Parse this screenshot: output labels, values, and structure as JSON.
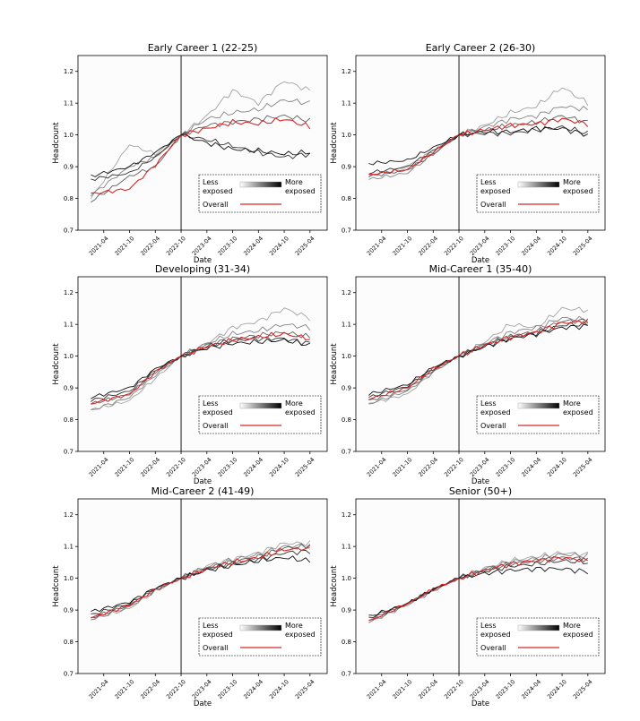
{
  "figure": {
    "title": ""
  },
  "chart_data": [
    {
      "type": "line",
      "title": "Early Career 1 (22-25)",
      "xlabel": "Date",
      "ylabel": "Headcount",
      "x_ticks": [
        "2021-04",
        "2021-10",
        "2022-04",
        "2022-10",
        "2023-04",
        "2023-10",
        "2024-04",
        "2024-10",
        "2025-04"
      ],
      "ylim": [
        0.7,
        1.25
      ],
      "y_ticks": [
        0.7,
        0.8,
        0.9,
        1.0,
        1.1,
        1.2
      ],
      "vertical_line_at": "2022-10",
      "legend": {
        "less_label": "Less\nexposed",
        "more_label": "More\nexposed",
        "overall_label": "Overall",
        "placement": "lower-right"
      },
      "series": [
        {
          "name": "Overall",
          "color": "#d62728",
          "anchors": [
            0.815,
            0.83,
            0.905,
            1.0,
            1.02,
            1.04,
            1.035,
            1.05,
            1.025
          ]
        },
        {
          "shade": 0.08,
          "anchors": [
            0.87,
            0.9,
            0.945,
            1.0,
            0.975,
            0.955,
            0.95,
            0.94,
            0.945
          ]
        },
        {
          "shade": 0.22,
          "anchors": [
            0.86,
            0.88,
            0.93,
            1.0,
            0.985,
            0.965,
            0.945,
            0.93,
            0.94
          ]
        },
        {
          "shade": 0.42,
          "anchors": [
            0.79,
            0.87,
            0.9,
            1.0,
            1.03,
            1.04,
            1.05,
            1.06,
            1.045
          ]
        },
        {
          "shade": 0.58,
          "anchors": [
            0.81,
            0.9,
            0.93,
            1.0,
            1.05,
            1.07,
            1.08,
            1.11,
            1.1
          ]
        },
        {
          "shade": 0.72,
          "anchors": [
            0.8,
            0.97,
            0.94,
            1.0,
            1.06,
            1.14,
            1.1,
            1.17,
            1.14
          ]
        }
      ]
    },
    {
      "type": "line",
      "title": "Early Career 2 (26-30)",
      "xlabel": "Date",
      "ylabel": "Headcount",
      "x_ticks": [
        "2021-04",
        "2021-10",
        "2022-04",
        "2022-10",
        "2023-04",
        "2023-10",
        "2024-04",
        "2024-10",
        "2025-04"
      ],
      "ylim": [
        0.7,
        1.25
      ],
      "y_ticks": [
        0.7,
        0.8,
        0.9,
        1.0,
        1.1,
        1.2
      ],
      "vertical_line_at": "2022-10",
      "legend": {
        "less_label": "Less\nexposed",
        "more_label": "More\nexposed",
        "overall_label": "Overall",
        "placement": "lower-right"
      },
      "series": [
        {
          "name": "Overall",
          "color": "#d62728",
          "anchors": [
            0.875,
            0.89,
            0.945,
            1.0,
            1.015,
            1.03,
            1.035,
            1.05,
            1.035
          ]
        },
        {
          "shade": 0.08,
          "anchors": [
            0.91,
            0.92,
            0.96,
            1.0,
            1.01,
            1.01,
            1.02,
            1.02,
            1.0
          ]
        },
        {
          "shade": 0.22,
          "anchors": [
            0.88,
            0.9,
            0.95,
            1.0,
            1.005,
            1.005,
            1.015,
            1.025,
            1.005
          ]
        },
        {
          "shade": 0.42,
          "anchors": [
            0.87,
            0.89,
            0.94,
            1.0,
            1.015,
            1.03,
            1.04,
            1.06,
            1.04
          ]
        },
        {
          "shade": 0.58,
          "anchors": [
            0.86,
            0.88,
            0.94,
            1.0,
            1.025,
            1.05,
            1.06,
            1.09,
            1.08
          ]
        },
        {
          "shade": 0.72,
          "anchors": [
            0.87,
            0.9,
            0.95,
            1.0,
            1.03,
            1.07,
            1.09,
            1.15,
            1.1
          ]
        }
      ]
    },
    {
      "type": "line",
      "title": "Developing (31-34)",
      "xlabel": "Date",
      "ylabel": "Headcount",
      "x_ticks": [
        "2021-04",
        "2021-10",
        "2022-04",
        "2022-10",
        "2023-04",
        "2023-10",
        "2024-04",
        "2024-10",
        "2025-04"
      ],
      "ylim": [
        0.7,
        1.25
      ],
      "y_ticks": [
        0.7,
        0.8,
        0.9,
        1.0,
        1.1,
        1.2
      ],
      "vertical_line_at": "2022-10",
      "legend": {
        "less_label": "Less\nexposed",
        "more_label": "More\nexposed",
        "overall_label": "Overall",
        "placement": "lower-right"
      },
      "series": [
        {
          "name": "Overall",
          "color": "#d62728",
          "anchors": [
            0.85,
            0.88,
            0.95,
            1.0,
            1.03,
            1.05,
            1.06,
            1.07,
            1.055
          ]
        },
        {
          "shade": 0.08,
          "anchors": [
            0.87,
            0.9,
            0.96,
            1.0,
            1.025,
            1.04,
            1.045,
            1.05,
            1.035
          ]
        },
        {
          "shade": 0.22,
          "anchors": [
            0.86,
            0.89,
            0.955,
            1.0,
            1.03,
            1.05,
            1.055,
            1.055,
            1.04
          ]
        },
        {
          "shade": 0.42,
          "anchors": [
            0.85,
            0.88,
            0.95,
            1.0,
            1.035,
            1.055,
            1.065,
            1.075,
            1.06
          ]
        },
        {
          "shade": 0.58,
          "anchors": [
            0.83,
            0.87,
            0.94,
            1.0,
            1.04,
            1.07,
            1.08,
            1.1,
            1.09
          ]
        },
        {
          "shade": 0.72,
          "anchors": [
            0.83,
            0.86,
            0.93,
            1.0,
            1.04,
            1.09,
            1.11,
            1.15,
            1.12
          ]
        }
      ]
    },
    {
      "type": "line",
      "title": "Mid-Career 1 (35-40)",
      "xlabel": "Date",
      "ylabel": "Headcount",
      "x_ticks": [
        "2021-04",
        "2021-10",
        "2022-04",
        "2022-10",
        "2023-04",
        "2023-10",
        "2024-04",
        "2024-10",
        "2025-04"
      ],
      "ylim": [
        0.7,
        1.25
      ],
      "y_ticks": [
        0.7,
        0.8,
        0.9,
        1.0,
        1.1,
        1.2
      ],
      "vertical_line_at": "2022-10",
      "legend": {
        "less_label": "Less\nexposed",
        "more_label": "More\nexposed",
        "overall_label": "Overall",
        "placement": "lower-right"
      },
      "series": [
        {
          "name": "Overall",
          "color": "#d62728",
          "anchors": [
            0.865,
            0.9,
            0.96,
            1.0,
            1.035,
            1.06,
            1.075,
            1.105,
            1.11
          ]
        },
        {
          "shade": 0.08,
          "anchors": [
            0.88,
            0.91,
            0.965,
            1.0,
            1.03,
            1.055,
            1.07,
            1.09,
            1.095
          ]
        },
        {
          "shade": 0.22,
          "anchors": [
            0.87,
            0.905,
            0.96,
            1.0,
            1.032,
            1.058,
            1.072,
            1.098,
            1.1
          ]
        },
        {
          "shade": 0.42,
          "anchors": [
            0.86,
            0.895,
            0.955,
            1.0,
            1.036,
            1.062,
            1.078,
            1.11,
            1.112
          ]
        },
        {
          "shade": 0.58,
          "anchors": [
            0.85,
            0.89,
            0.95,
            1.0,
            1.04,
            1.075,
            1.09,
            1.12,
            1.115
          ]
        },
        {
          "shade": 0.72,
          "anchors": [
            0.85,
            0.88,
            0.95,
            1.0,
            1.045,
            1.1,
            1.09,
            1.15,
            1.145
          ]
        }
      ]
    },
    {
      "type": "line",
      "title": "Mid-Career 2 (41-49)",
      "xlabel": "Date",
      "ylabel": "Headcount",
      "x_ticks": [
        "2021-04",
        "2021-10",
        "2022-04",
        "2022-10",
        "2023-04",
        "2023-10",
        "2024-04",
        "2024-10",
        "2025-04"
      ],
      "ylim": [
        0.7,
        1.25
      ],
      "y_ticks": [
        0.7,
        0.8,
        0.9,
        1.0,
        1.1,
        1.2
      ],
      "vertical_line_at": "2022-10",
      "legend": {
        "less_label": "Less\nexposed",
        "more_label": "More\nexposed",
        "overall_label": "Overall",
        "placement": "lower-right"
      },
      "series": [
        {
          "name": "Overall",
          "color": "#d62728",
          "anchors": [
            0.875,
            0.915,
            0.965,
            1.0,
            1.03,
            1.05,
            1.065,
            1.09,
            1.095
          ]
        },
        {
          "shade": 0.08,
          "anchors": [
            0.895,
            0.925,
            0.97,
            1.0,
            1.025,
            1.04,
            1.055,
            1.065,
            1.055
          ]
        },
        {
          "shade": 0.22,
          "anchors": [
            0.885,
            0.92,
            0.968,
            1.0,
            1.028,
            1.046,
            1.06,
            1.08,
            1.085
          ]
        },
        {
          "shade": 0.42,
          "anchors": [
            0.875,
            0.915,
            0.965,
            1.0,
            1.032,
            1.052,
            1.068,
            1.095,
            1.1
          ]
        },
        {
          "shade": 0.58,
          "anchors": [
            0.87,
            0.91,
            0.96,
            1.0,
            1.036,
            1.058,
            1.075,
            1.1,
            1.105
          ]
        },
        {
          "shade": 0.72,
          "anchors": [
            0.87,
            0.905,
            0.96,
            1.0,
            1.04,
            1.06,
            1.08,
            1.11,
            1.11
          ]
        }
      ]
    },
    {
      "type": "line",
      "title": "Senior (50+)",
      "xlabel": "Date",
      "ylabel": "Headcount",
      "x_ticks": [
        "2021-04",
        "2021-10",
        "2022-04",
        "2022-10",
        "2023-04",
        "2023-10",
        "2024-04",
        "2024-10",
        "2025-04"
      ],
      "ylim": [
        0.7,
        1.25
      ],
      "y_ticks": [
        0.7,
        0.8,
        0.9,
        1.0,
        1.1,
        1.2
      ],
      "vertical_line_at": "2022-10",
      "legend": {
        "less_label": "Less\nexposed",
        "more_label": "More\nexposed",
        "overall_label": "Overall",
        "placement": "lower-right"
      },
      "series": [
        {
          "name": "Overall",
          "color": "#d62728",
          "anchors": [
            0.865,
            0.92,
            0.965,
            1.0,
            1.025,
            1.045,
            1.055,
            1.065,
            1.055
          ]
        },
        {
          "shade": 0.08,
          "anchors": [
            0.88,
            0.92,
            0.965,
            1.0,
            1.015,
            1.025,
            1.03,
            1.03,
            1.02
          ]
        },
        {
          "shade": 0.22,
          "anchors": [
            0.875,
            0.92,
            0.965,
            1.0,
            1.022,
            1.038,
            1.045,
            1.055,
            1.05
          ]
        },
        {
          "shade": 0.42,
          "anchors": [
            0.868,
            0.92,
            0.965,
            1.0,
            1.026,
            1.045,
            1.055,
            1.065,
            1.06
          ]
        },
        {
          "shade": 0.58,
          "anchors": [
            0.862,
            0.918,
            0.962,
            1.0,
            1.03,
            1.052,
            1.062,
            1.075,
            1.07
          ]
        },
        {
          "shade": 0.72,
          "anchors": [
            0.86,
            0.915,
            0.96,
            1.0,
            1.032,
            1.055,
            1.068,
            1.08,
            1.075
          ]
        }
      ]
    }
  ]
}
